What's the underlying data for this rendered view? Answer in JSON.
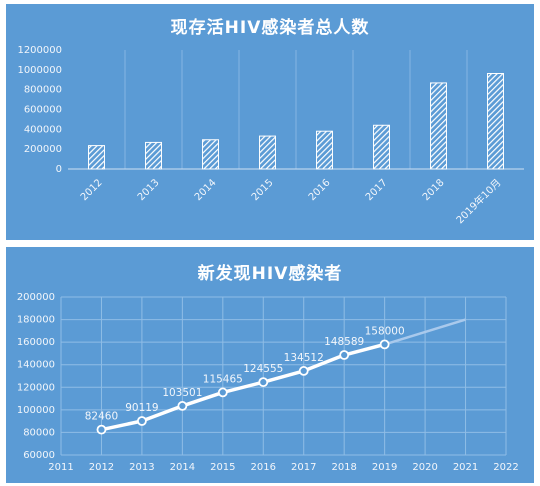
{
  "chart_data": [
    {
      "type": "bar",
      "title": "现存活HIV感染者总人数",
      "categories": [
        "2012",
        "2013",
        "2014",
        "2015",
        "2016",
        "2017",
        "2018",
        "2019年10月"
      ],
      "values": [
        236000,
        268000,
        295000,
        332000,
        381000,
        441000,
        868000,
        963000
      ],
      "yticks": [
        "0",
        "200000",
        "400000",
        "600000",
        "800000",
        "1000000",
        "1200000"
      ],
      "ylim": [
        0,
        1200000
      ],
      "grid": false,
      "fill": "diagonal-hatch",
      "colors": {
        "background": "#5b9bd5",
        "bar": "#ffffff"
      }
    },
    {
      "type": "line",
      "title": "新发现HIV感染者",
      "x": [
        2012,
        2013,
        2014,
        2015,
        2016,
        2017,
        2018,
        2019
      ],
      "values": [
        82460,
        90119,
        103501,
        115465,
        124555,
        134512,
        148589,
        158000
      ],
      "labels": [
        "82460",
        "90119",
        "103501",
        "115465",
        "124555",
        "134512",
        "148589",
        "158000"
      ],
      "trend": {
        "x": [
          2019,
          2021
        ],
        "values": [
          158000,
          180000
        ]
      },
      "xticks": [
        "2011",
        "2012",
        "2013",
        "2014",
        "2015",
        "2016",
        "2017",
        "2018",
        "2019",
        "2020",
        "2021",
        "2022"
      ],
      "yticks": [
        "60000",
        "80000",
        "100000",
        "120000",
        "140000",
        "160000",
        "180000",
        "200000"
      ],
      "xlim": [
        2011,
        2022
      ],
      "ylim": [
        60000,
        200000
      ],
      "grid": true,
      "colors": {
        "background": "#5b9bd5",
        "line": "#ffffff",
        "trend": "#a9c9ec"
      }
    }
  ]
}
